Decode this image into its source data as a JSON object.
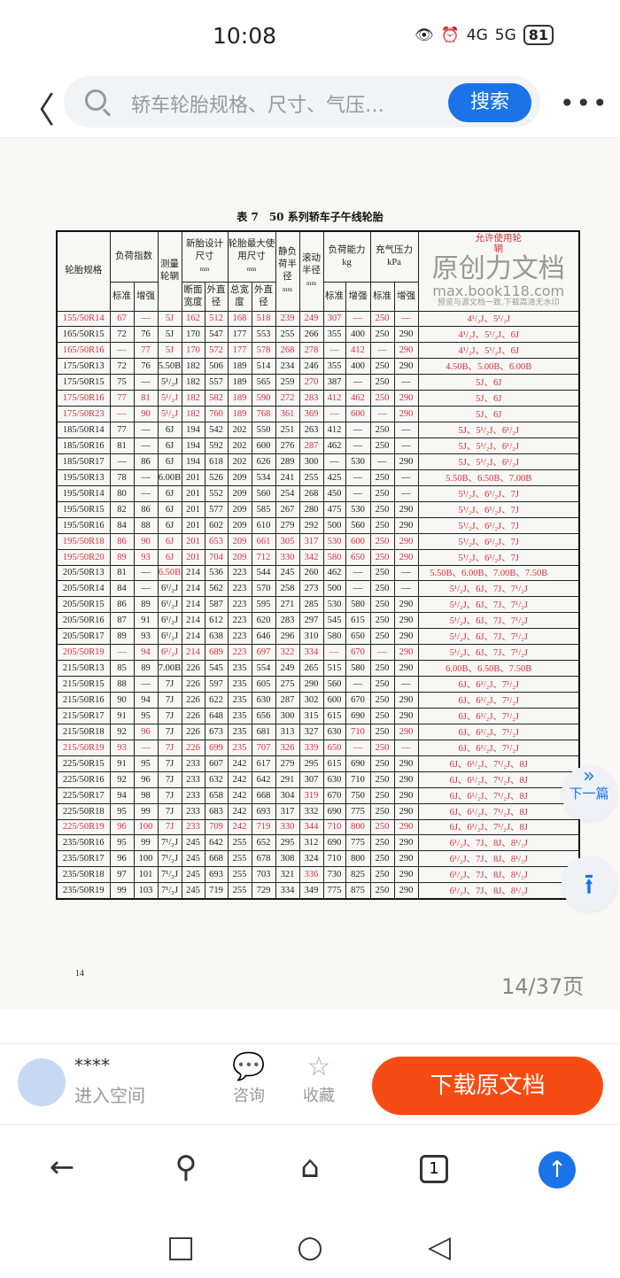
{
  "status": {
    "time": "10:08",
    "net1": "4G",
    "net2": "5G",
    "battery": "81"
  },
  "topbar": {
    "search_placeholder": "轿车轮胎规格、尺寸、气压…",
    "search_button": "搜索"
  },
  "doc": {
    "title": "表 7　50 系列轿车子午线轮胎",
    "headers": {
      "spec": "轮胎规格",
      "load_index": "负荷指数",
      "std": "标准",
      "reinf": "增强",
      "rim": "测量轮辋",
      "new_size": "新胎设计尺寸",
      "mm": "mm",
      "sec_width": "断面宽度",
      "outer_dia": "外直径",
      "max_size": "轮胎最大使用尺寸",
      "total_width": "总宽度",
      "static_radius": "静负荷半径",
      "rolling_radius": "滚动半径",
      "load_cap": "负荷能力",
      "kg": "kg",
      "pressure": "充气压力",
      "kpa": "kPa",
      "allowed_rims": "允许使用轮辋"
    },
    "rows": [
      {
        "c": [
          "155/50R14",
          "67",
          "—",
          "5J",
          "162",
          "512",
          "168",
          "518",
          "239",
          "249",
          "307",
          "—",
          "250",
          "—",
          "4¹/₂J、5¹/₂J"
        ],
        "red": true
      },
      {
        "c": [
          "165/50R15",
          "72",
          "76",
          "5J",
          "170",
          "547",
          "177",
          "553",
          "255",
          "266",
          "355",
          "400",
          "250",
          "290",
          "4¹/₂J、5¹/₂J、6J"
        ]
      },
      {
        "c": [
          "165/50R16",
          "—",
          "77",
          "5J",
          "170",
          "572",
          "177",
          "578",
          "268",
          "278",
          "—",
          "412",
          "—",
          "290",
          "4¹/₂J、5¹/₂J、6J"
        ],
        "red": true
      },
      {
        "c": [
          "175/50R13",
          "72",
          "76",
          "5.50B",
          "182",
          "506",
          "189",
          "514",
          "234",
          "246",
          "355",
          "400",
          "250",
          "290",
          "4.50B、5.00B、6.00B"
        ]
      },
      {
        "c": [
          "175/50R15",
          "75",
          "—",
          "5¹/₂J",
          "182",
          "557",
          "189",
          "565",
          "259",
          "270",
          "387",
          "—",
          "250",
          "—",
          "5J、6J"
        ],
        "redc": [
          9
        ]
      },
      {
        "c": [
          "175/50R16",
          "77",
          "81",
          "5¹/₂J",
          "182",
          "582",
          "189",
          "590",
          "272",
          "283",
          "412",
          "462",
          "250",
          "290",
          "5J、6J"
        ],
        "red": true
      },
      {
        "c": [
          "175/50R23",
          "—",
          "90",
          "5¹/₂J",
          "182",
          "760",
          "189",
          "768",
          "361",
          "369",
          "—",
          "600",
          "—",
          "290",
          "5J、6J"
        ],
        "red": true
      },
      {
        "c": [
          "185/50R14",
          "77",
          "—",
          "6J",
          "194",
          "542",
          "202",
          "550",
          "251",
          "263",
          "412",
          "—",
          "250",
          "—",
          "5J、5¹/₂J、6¹/₂J"
        ]
      },
      {
        "c": [
          "185/50R16",
          "81",
          "—",
          "6J",
          "194",
          "592",
          "202",
          "600",
          "276",
          "287",
          "462",
          "—",
          "250",
          "—",
          "5J、5¹/₂J、6¹/₂J"
        ],
        "redc": [
          9
        ]
      },
      {
        "c": [
          "185/50R17",
          "—",
          "86",
          "6J",
          "194",
          "618",
          "202",
          "626",
          "289",
          "300",
          "—",
          "530",
          "—",
          "290",
          "5J、5¹/₂J、6¹/₂J"
        ]
      },
      {
        "c": [
          "195/50R13",
          "78",
          "—",
          "6.00B",
          "201",
          "526",
          "209",
          "534",
          "241",
          "255",
          "425",
          "—",
          "250",
          "—",
          "5.50B、6.50B、7.00B"
        ]
      },
      {
        "c": [
          "195/50R14",
          "80",
          "—",
          "6J",
          "201",
          "552",
          "209",
          "560",
          "254",
          "268",
          "450",
          "—",
          "250",
          "—",
          "5¹/₂J、6¹/₂J、7J"
        ]
      },
      {
        "c": [
          "195/50R15",
          "82",
          "86",
          "6J",
          "201",
          "577",
          "209",
          "585",
          "267",
          "280",
          "475",
          "530",
          "250",
          "290",
          "5¹/₂J、6¹/₂J、7J"
        ]
      },
      {
        "c": [
          "195/50R16",
          "84",
          "88",
          "6J",
          "201",
          "602",
          "209",
          "610",
          "279",
          "292",
          "500",
          "560",
          "250",
          "290",
          "5¹/₂J、6¹/₂J、7J"
        ]
      },
      {
        "c": [
          "195/50R18",
          "86",
          "90",
          "6J",
          "201",
          "653",
          "209",
          "661",
          "305",
          "317",
          "530",
          "600",
          "250",
          "290",
          "5¹/₂J、6¹/₂J、7J"
        ],
        "red": true
      },
      {
        "c": [
          "195/50R20",
          "89",
          "93",
          "6J",
          "201",
          "704",
          "209",
          "712",
          "330",
          "342",
          "580",
          "650",
          "250",
          "290",
          "5¹/₂J、6¹/₂J、7J"
        ],
        "red": true
      },
      {
        "c": [
          "205/50R13",
          "81",
          "—",
          "6.50B",
          "214",
          "536",
          "223",
          "544",
          "245",
          "260",
          "462",
          "—",
          "250",
          "—",
          "5.50B、6.00B、7.00B、7.50B"
        ],
        "redc": [
          3
        ]
      },
      {
        "c": [
          "205/50R14",
          "84",
          "—",
          "6¹/₂J",
          "214",
          "562",
          "223",
          "570",
          "258",
          "273",
          "500",
          "—",
          "250",
          "—",
          "5¹/₂J、6J、7J、7¹/₂J"
        ]
      },
      {
        "c": [
          "205/50R15",
          "86",
          "89",
          "6¹/₂J",
          "214",
          "587",
          "223",
          "595",
          "271",
          "285",
          "530",
          "580",
          "250",
          "290",
          "5¹/₂J、6J、7J、7¹/₂J"
        ]
      },
      {
        "c": [
          "205/50R16",
          "87",
          "91",
          "6¹/₂J",
          "214",
          "612",
          "223",
          "620",
          "283",
          "297",
          "545",
          "615",
          "250",
          "290",
          "5¹/₂J、6J、7J、7¹/₂J"
        ]
      },
      {
        "c": [
          "205/50R17",
          "89",
          "93",
          "6¹/₂J",
          "214",
          "638",
          "223",
          "646",
          "296",
          "310",
          "580",
          "650",
          "250",
          "290",
          "5¹/₂J、6J、7J、7¹/₂J"
        ]
      },
      {
        "c": [
          "205/50R19",
          "—",
          "94",
          "6¹/₂J",
          "214",
          "689",
          "223",
          "697",
          "322",
          "334",
          "—",
          "670",
          "—",
          "290",
          "5¹/₂J、6J、7J、7¹/₂J"
        ],
        "red": true
      },
      {
        "c": [
          "215/50R13",
          "85",
          "89",
          "7.00B",
          "226",
          "545",
          "235",
          "554",
          "249",
          "265",
          "515",
          "580",
          "250",
          "290",
          "6.00B、6.50B、7.50B"
        ]
      },
      {
        "c": [
          "215/50R15",
          "88",
          "—",
          "7J",
          "226",
          "597",
          "235",
          "605",
          "275",
          "290",
          "560",
          "—",
          "250",
          "—",
          "6J、6¹/₂J、7¹/₂J"
        ]
      },
      {
        "c": [
          "215/50R16",
          "90",
          "94",
          "7J",
          "226",
          "622",
          "235",
          "630",
          "287",
          "302",
          "600",
          "670",
          "250",
          "290",
          "6J、6¹/₂J、7¹/₂J"
        ]
      },
      {
        "c": [
          "215/50R17",
          "91",
          "95",
          "7J",
          "226",
          "648",
          "235",
          "656",
          "300",
          "315",
          "615",
          "690",
          "250",
          "290",
          "6J、6¹/₂J、7¹/₂J"
        ]
      },
      {
        "c": [
          "215/50R18",
          "92",
          "96",
          "7J",
          "226",
          "673",
          "235",
          "681",
          "313",
          "327",
          "630",
          "710",
          "250",
          "290",
          "6J、6¹/₂J、7¹/₂J"
        ],
        "redc": [
          2,
          11,
          13
        ]
      },
      {
        "c": [
          "215/50R19",
          "93",
          "—",
          "7J",
          "226",
          "699",
          "235",
          "707",
          "326",
          "339",
          "650",
          "—",
          "250",
          "—",
          "6J、6¹/₂J、7¹/₂J"
        ],
        "red": true
      },
      {
        "c": [
          "225/50R15",
          "91",
          "95",
          "7J",
          "233",
          "607",
          "242",
          "617",
          "279",
          "295",
          "615",
          "690",
          "250",
          "290",
          "6J、6¹/₂J、7¹/₂J、8J"
        ]
      },
      {
        "c": [
          "225/50R16",
          "92",
          "96",
          "7J",
          "233",
          "632",
          "242",
          "642",
          "291",
          "307",
          "630",
          "710",
          "250",
          "290",
          "6J、6¹/₂J、7¹/₂J、8J"
        ]
      },
      {
        "c": [
          "225/50R17",
          "94",
          "98",
          "7J",
          "233",
          "658",
          "242",
          "668",
          "304",
          "319",
          "670",
          "750",
          "250",
          "290",
          "6J、6¹/₂J、7¹/₂J、8J"
        ],
        "redc": [
          9
        ]
      },
      {
        "c": [
          "225/50R18",
          "95",
          "99",
          "7J",
          "233",
          "683",
          "242",
          "693",
          "317",
          "332",
          "690",
          "775",
          "250",
          "290",
          "6J、6¹/₂J、7¹/₂J、8J"
        ]
      },
      {
        "c": [
          "225/50R19",
          "96",
          "100",
          "7J",
          "233",
          "709",
          "242",
          "719",
          "330",
          "344",
          "710",
          "800",
          "250",
          "290",
          "6J、6¹/₂J、7¹/₂J、8J"
        ],
        "red": true
      },
      {
        "c": [
          "235/50R16",
          "95",
          "99",
          "7¹/₂J",
          "245",
          "642",
          "255",
          "652",
          "295",
          "312",
          "690",
          "775",
          "250",
          "290",
          "6¹/₂J、7J、8J、8¹/₂J"
        ]
      },
      {
        "c": [
          "235/50R17",
          "96",
          "100",
          "7¹/₂J",
          "245",
          "668",
          "255",
          "678",
          "308",
          "324",
          "710",
          "800",
          "250",
          "290",
          "6¹/₂J、7J、8J、8¹/₂J"
        ]
      },
      {
        "c": [
          "235/50R18",
          "97",
          "101",
          "7¹/₂J",
          "245",
          "693",
          "255",
          "703",
          "321",
          "336",
          "730",
          "825",
          "250",
          "290",
          "6¹/₂J、7J、8J、8¹/₂J"
        ],
        "redc": [
          9
        ]
      },
      {
        "c": [
          "235/50R19",
          "99",
          "103",
          "7¹/₂J",
          "245",
          "719",
          "255",
          "729",
          "334",
          "349",
          "775",
          "875",
          "250",
          "290",
          "6¹/₂J、7J、8J、8¹/₂J"
        ]
      }
    ],
    "page_number": "14",
    "page_count": "14/37页",
    "watermark": {
      "brand": "原创力文档",
      "site": "max.book118.com",
      "note": "预览与源文档一致,下载高清无水印"
    }
  },
  "fab": {
    "next_label": "下一篇"
  },
  "bottom": {
    "user": "****",
    "space": "进入空间",
    "consult": "咨询",
    "favorite": "收藏",
    "download": "下载原文档"
  },
  "nav": {
    "tabs": "1"
  },
  "colors": {
    "red": "#d8303a",
    "accent": "#1a73e8",
    "download": "#f64b12"
  }
}
